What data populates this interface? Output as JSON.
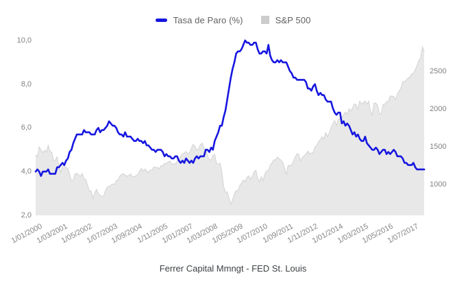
{
  "chart": {
    "caption": "Ferrer Capital Mmngt - FED St. Louis",
    "legend": {
      "items": [
        {
          "label": "Tasa de Paro (%)",
          "swatch": "line",
          "color": "#1616e0"
        },
        {
          "label": "S&P 500",
          "swatch": "square",
          "color": "#cccccc"
        }
      ]
    },
    "left_axis": {
      "tick_labels": [
        "2,0",
        "4,0",
        "6,0",
        "8,0",
        "10,0"
      ],
      "tick_values": [
        2,
        4,
        6,
        8,
        10
      ]
    },
    "right_axis": {
      "tick_labels": [
        "1000",
        "1500",
        "2000",
        "2500"
      ],
      "tick_values": [
        1000,
        1500,
        2000,
        2500
      ]
    },
    "x_axis": {
      "tick_labels": [
        "1/01/2000",
        "1/03/2001",
        "1/05/2002",
        "1/07/2003",
        "1/09/2004",
        "1/11/2005",
        "1/01/2007",
        "1/03/2008",
        "1/05/2009",
        "1/07/2010",
        "1/09/2011",
        "1/11/2012",
        "1/01/2014",
        "1/03/2015",
        "1/05/2016",
        "1/07/2017"
      ],
      "tick_month_indices": [
        0,
        14,
        28,
        42,
        56,
        70,
        84,
        98,
        112,
        126,
        140,
        154,
        168,
        182,
        196,
        210
      ]
    }
  },
  "chart_data": {
    "type": "line",
    "frequency": "monthly",
    "x_start": "2000-01",
    "x_end": "2018-02",
    "grid": false,
    "legend_position": "top",
    "left_axis_range": [
      2,
      10.125
    ],
    "right_axis_range": [
      591,
      2946
    ],
    "series": [
      {
        "name": "Tasa de Paro (%)",
        "render": "line",
        "axis": "left",
        "color": "#1616e0",
        "values": [
          4.0,
          4.1,
          4.0,
          3.8,
          4.0,
          4.0,
          4.0,
          4.1,
          3.9,
          3.9,
          3.9,
          3.9,
          4.2,
          4.2,
          4.3,
          4.4,
          4.3,
          4.5,
          4.6,
          4.9,
          5.0,
          5.3,
          5.5,
          5.7,
          5.7,
          5.7,
          5.7,
          5.9,
          5.8,
          5.8,
          5.8,
          5.7,
          5.7,
          5.7,
          5.9,
          6.0,
          5.8,
          5.9,
          5.9,
          6.0,
          6.1,
          6.3,
          6.2,
          6.1,
          6.1,
          6.0,
          5.8,
          5.7,
          5.7,
          5.6,
          5.8,
          5.6,
          5.6,
          5.6,
          5.5,
          5.4,
          5.4,
          5.5,
          5.4,
          5.4,
          5.3,
          5.4,
          5.2,
          5.2,
          5.1,
          5.0,
          5.0,
          4.9,
          5.0,
          5.0,
          5.0,
          4.9,
          4.7,
          4.8,
          4.7,
          4.7,
          4.6,
          4.6,
          4.7,
          4.7,
          4.5,
          4.4,
          4.5,
          4.4,
          4.6,
          4.5,
          4.4,
          4.5,
          4.4,
          4.6,
          4.7,
          4.6,
          4.7,
          4.7,
          4.7,
          5.0,
          5.0,
          4.9,
          5.1,
          5.0,
          5.4,
          5.6,
          5.8,
          6.1,
          6.1,
          6.5,
          6.8,
          7.3,
          7.8,
          8.3,
          8.7,
          9.0,
          9.4,
          9.5,
          9.5,
          9.6,
          9.8,
          10.0,
          9.9,
          9.9,
          9.8,
          9.8,
          9.9,
          9.9,
          9.6,
          9.4,
          9.4,
          9.5,
          9.5,
          9.4,
          9.8,
          9.3,
          9.1,
          9.0,
          9.0,
          9.1,
          9.0,
          9.1,
          9.0,
          9.0,
          9.0,
          8.8,
          8.6,
          8.5,
          8.3,
          8.3,
          8.2,
          8.2,
          8.2,
          8.2,
          8.2,
          8.1,
          7.8,
          7.8,
          7.7,
          7.9,
          8.0,
          7.7,
          7.5,
          7.6,
          7.5,
          7.5,
          7.3,
          7.2,
          7.2,
          7.2,
          6.9,
          6.7,
          6.6,
          6.7,
          6.7,
          6.2,
          6.3,
          6.1,
          6.2,
          6.1,
          5.9,
          5.7,
          5.8,
          5.6,
          5.7,
          5.5,
          5.4,
          5.4,
          5.6,
          5.3,
          5.2,
          5.1,
          5.0,
          5.0,
          5.1,
          5.0,
          4.8,
          4.9,
          5.0,
          5.0,
          4.8,
          4.9,
          4.8,
          4.9,
          5.0,
          4.9,
          4.7,
          4.7,
          4.7,
          4.6,
          4.4,
          4.4,
          4.3,
          4.3,
          4.3,
          4.4,
          4.2,
          4.1,
          4.1,
          4.1,
          4.1,
          4.1
        ]
      },
      {
        "name": "S&P 500",
        "render": "area",
        "axis": "right",
        "color": "#e8e8e8",
        "edge_color": "#d2d2d2",
        "values": [
          1394,
          1366,
          1499,
          1452,
          1421,
          1455,
          1431,
          1518,
          1437,
          1429,
          1315,
          1320,
          1366,
          1240,
          1160,
          1249,
          1256,
          1224,
          1211,
          1134,
          1041,
          1060,
          1139,
          1148,
          1130,
          1107,
          1147,
          1077,
          1067,
          990,
          911,
          916,
          815,
          886,
          936,
          880,
          856,
          841,
          848,
          917,
          964,
          975,
          990,
          1008,
          996,
          1051,
          1058,
          1112,
          1131,
          1145,
          1126,
          1107,
          1121,
          1141,
          1102,
          1104,
          1114,
          1130,
          1174,
          1212,
          1181,
          1204,
          1181,
          1157,
          1192,
          1191,
          1234,
          1220,
          1229,
          1207,
          1249,
          1248,
          1280,
          1281,
          1295,
          1311,
          1270,
          1270,
          1277,
          1304,
          1336,
          1378,
          1401,
          1418,
          1438,
          1407,
          1421,
          1482,
          1531,
          1503,
          1455,
          1474,
          1527,
          1549,
          1481,
          1468,
          1379,
          1331,
          1323,
          1386,
          1400,
          1280,
          1267,
          1283,
          1166,
          969,
          896,
          903,
          826,
          735,
          798,
          873,
          919,
          919,
          987,
          1021,
          1057,
          1036,
          1096,
          1115,
          1074,
          1104,
          1169,
          1187,
          1089,
          1031,
          1102,
          1049,
          1141,
          1183,
          1181,
          1258,
          1286,
          1327,
          1326,
          1364,
          1345,
          1321,
          1292,
          1219,
          1131,
          1253,
          1247,
          1258,
          1312,
          1366,
          1408,
          1398,
          1310,
          1362,
          1379,
          1407,
          1441,
          1412,
          1416,
          1426,
          1498,
          1515,
          1569,
          1598,
          1631,
          1606,
          1686,
          1633,
          1682,
          1757,
          1806,
          1848,
          1783,
          1859,
          1872,
          1884,
          1924,
          1960,
          1931,
          2003,
          1972,
          2018,
          2068,
          2059,
          1995,
          2105,
          2068,
          2086,
          2107,
          2063,
          2104,
          1972,
          1920,
          2079,
          2080,
          2044,
          1940,
          1932,
          2060,
          2065,
          2097,
          2099,
          2174,
          2171,
          2168,
          2126,
          2199,
          2239,
          2279,
          2364,
          2363,
          2384,
          2412,
          2423,
          2470,
          2472,
          2519,
          2575,
          2648,
          2674,
          2824,
          2762
        ]
      }
    ],
    "title": "",
    "xlabel": "",
    "ylabel_left": "Tasa de Paro (%)",
    "ylabel_right": "S&P 500",
    "source": "Ferrer Capital Mmngt - FED St. Louis"
  }
}
